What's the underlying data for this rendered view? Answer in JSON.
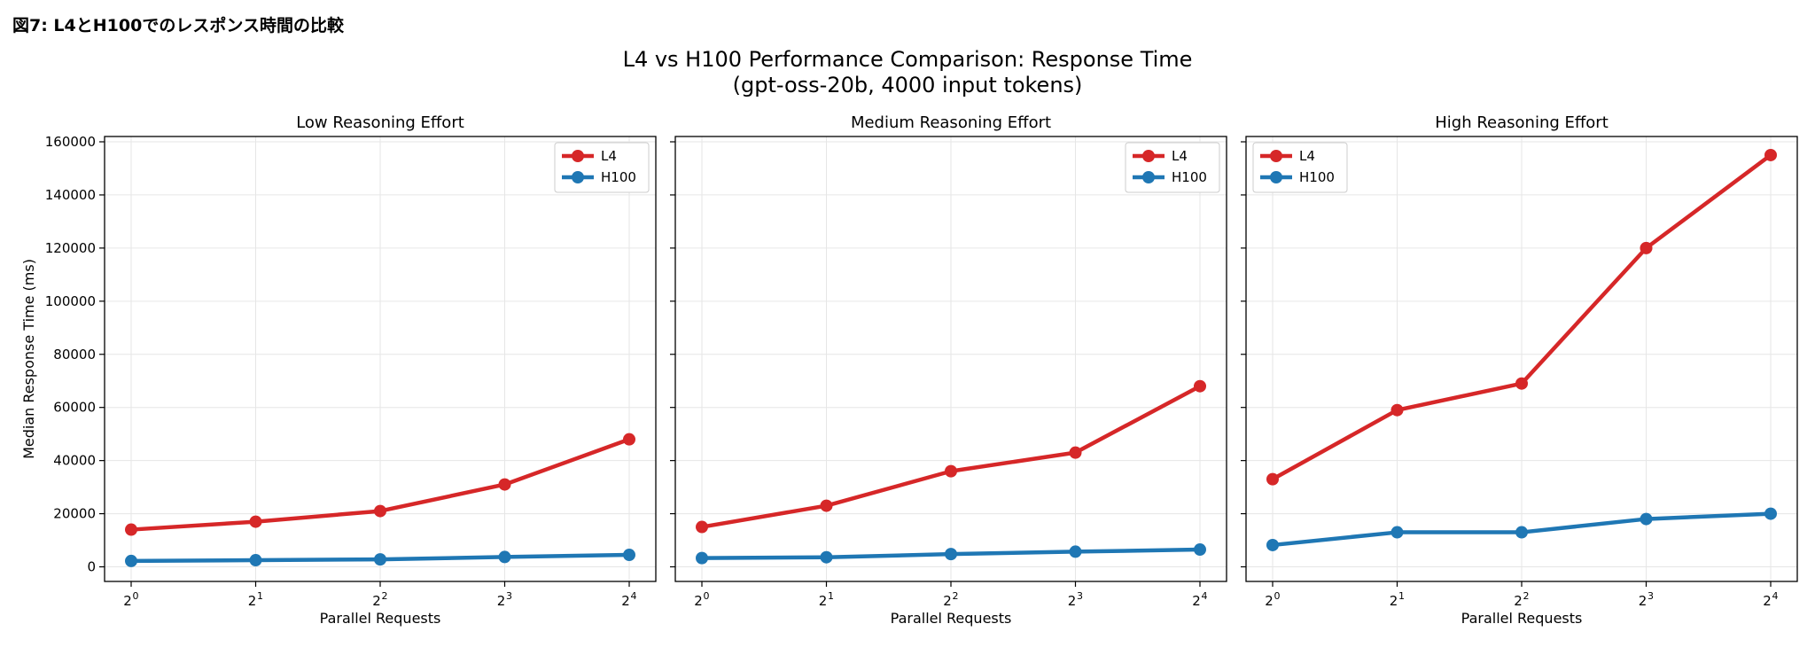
{
  "caption": "図7: L4とH100でのレスポンス時間の比較",
  "suptitle": {
    "line1": "L4 vs H100 Performance Comparison: Response Time",
    "line2": "(gpt-oss-20b, 4000 input tokens)"
  },
  "colors": {
    "L4": "#d62728",
    "H100": "#1f77b4",
    "grid": "#e6e6e6",
    "axis": "#000000"
  },
  "chart_data": [
    {
      "type": "line",
      "title": "Low Reasoning Effort",
      "xlabel": "Parallel Requests",
      "ylabel": "Median Response Time (ms)",
      "x": [
        1,
        2,
        4,
        8,
        16
      ],
      "x_tick_base": [
        "2",
        "2",
        "2",
        "2",
        "2"
      ],
      "x_tick_exp": [
        "0",
        "1",
        "2",
        "3",
        "4"
      ],
      "xscale": "log2",
      "ylim": [
        -5500,
        162000
      ],
      "yticks": [
        0,
        20000,
        40000,
        60000,
        80000,
        100000,
        120000,
        140000,
        160000
      ],
      "grid": true,
      "legend": "top-right",
      "series": [
        {
          "name": "L4",
          "values": [
            14000,
            17000,
            21000,
            31000,
            48000
          ]
        },
        {
          "name": "H100",
          "values": [
            2200,
            2500,
            2800,
            3700,
            4500
          ]
        }
      ]
    },
    {
      "type": "line",
      "title": "Medium Reasoning Effort",
      "xlabel": "Parallel Requests",
      "ylabel": "",
      "x": [
        1,
        2,
        4,
        8,
        16
      ],
      "x_tick_base": [
        "2",
        "2",
        "2",
        "2",
        "2"
      ],
      "x_tick_exp": [
        "0",
        "1",
        "2",
        "3",
        "4"
      ],
      "xscale": "log2",
      "ylim": [
        -5500,
        162000
      ],
      "grid": true,
      "legend": "top-right",
      "series": [
        {
          "name": "L4",
          "values": [
            15000,
            23000,
            36000,
            43000,
            68000
          ]
        },
        {
          "name": "H100",
          "values": [
            3300,
            3600,
            4800,
            5700,
            6500
          ]
        }
      ]
    },
    {
      "type": "line",
      "title": "High Reasoning Effort",
      "xlabel": "Parallel Requests",
      "ylabel": "",
      "x": [
        1,
        2,
        4,
        8,
        16
      ],
      "x_tick_base": [
        "2",
        "2",
        "2",
        "2",
        "2"
      ],
      "x_tick_exp": [
        "0",
        "1",
        "2",
        "3",
        "4"
      ],
      "xscale": "log2",
      "ylim": [
        -5500,
        162000
      ],
      "grid": true,
      "legend": "top-left",
      "series": [
        {
          "name": "L4",
          "values": [
            33000,
            59000,
            69000,
            120000,
            155000
          ]
        },
        {
          "name": "H100",
          "values": [
            8200,
            13000,
            13000,
            18000,
            20000
          ]
        }
      ]
    }
  ]
}
